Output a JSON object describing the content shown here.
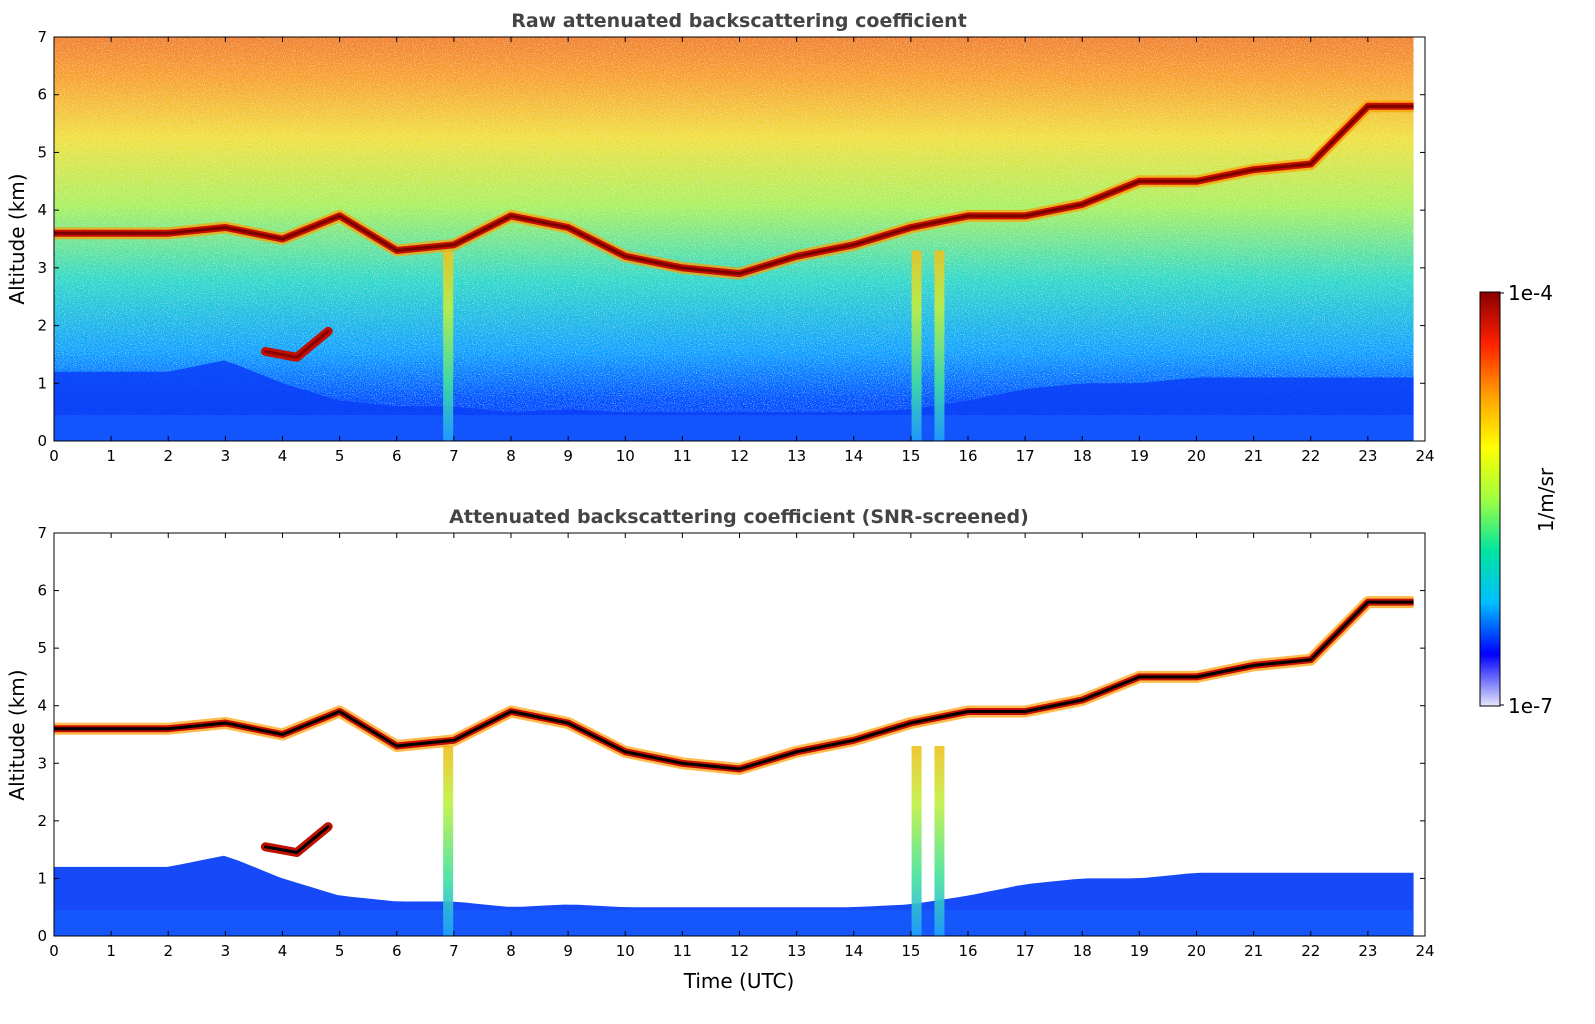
{
  "colors": {
    "panel_border": "#000000",
    "title_text": "#444444",
    "low": "#0000ff",
    "high": "#8b0000"
  },
  "colorbar": {
    "label": "1/m/sr",
    "max_label": "1e-4",
    "min_label": "1e-7",
    "colormap": [
      "#e6e6fa",
      "#0000ff",
      "#00bfff",
      "#00e5a0",
      "#a0ff40",
      "#ffff00",
      "#ffa000",
      "#ff2000",
      "#8b0000"
    ]
  },
  "chart_data": [
    {
      "type": "heatmap",
      "title": "Raw attenuated backscattering coefficient",
      "xlabel": "",
      "ylabel": "Altitude (km)",
      "xlim": [
        0,
        24
      ],
      "ylim": [
        0,
        7
      ],
      "xticks": [
        "0",
        "1",
        "2",
        "3",
        "4",
        "5",
        "6",
        "7",
        "8",
        "9",
        "10",
        "11",
        "12",
        "13",
        "14",
        "15",
        "16",
        "17",
        "18",
        "19",
        "20",
        "21",
        "22",
        "23",
        "24"
      ],
      "yticks": [
        "0",
        "1",
        "2",
        "3",
        "4",
        "5",
        "6",
        "7"
      ],
      "data_end_time": 23.8,
      "cloud_layer": {
        "time": [
          0,
          1,
          2,
          3,
          4,
          5,
          6,
          7,
          8,
          9,
          10,
          11,
          12,
          13,
          14,
          15,
          16,
          17,
          18,
          19,
          20,
          21,
          22,
          23,
          23.8
        ],
        "altitude_km": [
          3.6,
          3.6,
          3.6,
          3.7,
          3.5,
          3.9,
          3.3,
          3.4,
          3.9,
          3.7,
          3.2,
          3.0,
          2.9,
          3.2,
          3.4,
          3.7,
          3.9,
          3.9,
          4.1,
          4.5,
          4.5,
          4.7,
          4.8,
          5.8,
          5.8
        ]
      },
      "boundary_layer": {
        "time": [
          0,
          2,
          3,
          4,
          5,
          6,
          7,
          8,
          9,
          10,
          11,
          12,
          13,
          14,
          15,
          16,
          17,
          18,
          19,
          20,
          21,
          22,
          23,
          23.8
        ],
        "top_altitude_km": [
          1.2,
          1.2,
          1.4,
          1.0,
          0.7,
          0.6,
          0.6,
          0.5,
          0.55,
          0.5,
          0.5,
          0.5,
          0.5,
          0.5,
          0.55,
          0.7,
          0.9,
          1.0,
          1.0,
          1.1,
          1.1,
          1.1,
          1.1,
          1.1
        ]
      },
      "aerosol_layer": {
        "start": 3.7,
        "end": 4.8,
        "altitude_km": [
          1.55,
          1.45,
          1.9
        ]
      },
      "precipitation_columns": [
        6.9,
        15.1,
        15.5
      ],
      "value_range": [
        "1e-7",
        "1e-4"
      ]
    },
    {
      "type": "heatmap",
      "title": "Attenuated backscattering coefficient (SNR-screened)",
      "xlabel": "Time (UTC)",
      "ylabel": "Altitude (km)",
      "xlim": [
        0,
        24
      ],
      "ylim": [
        0,
        7
      ],
      "xticks": [
        "0",
        "1",
        "2",
        "3",
        "4",
        "5",
        "6",
        "7",
        "8",
        "9",
        "10",
        "11",
        "12",
        "13",
        "14",
        "15",
        "16",
        "17",
        "18",
        "19",
        "20",
        "21",
        "22",
        "23",
        "24"
      ],
      "yticks": [
        "0",
        "1",
        "2",
        "3",
        "4",
        "5",
        "6",
        "7"
      ],
      "data_end_time": 23.8,
      "noise_screened": true,
      "cloud_layer": {
        "time": [
          0,
          1,
          2,
          3,
          4,
          5,
          6,
          7,
          8,
          9,
          10,
          11,
          12,
          13,
          14,
          15,
          16,
          17,
          18,
          19,
          20,
          21,
          22,
          23,
          23.8
        ],
        "altitude_km": [
          3.6,
          3.6,
          3.6,
          3.7,
          3.5,
          3.9,
          3.3,
          3.4,
          3.9,
          3.7,
          3.2,
          3.0,
          2.9,
          3.2,
          3.4,
          3.7,
          3.9,
          3.9,
          4.1,
          4.5,
          4.5,
          4.7,
          4.8,
          5.8,
          5.8
        ]
      },
      "boundary_layer": {
        "time": [
          0,
          2,
          3,
          4,
          5,
          6,
          7,
          8,
          9,
          10,
          11,
          12,
          13,
          14,
          15,
          16,
          17,
          18,
          19,
          20,
          21,
          22,
          23,
          23.8
        ],
        "top_altitude_km": [
          1.2,
          1.2,
          1.4,
          1.0,
          0.7,
          0.6,
          0.6,
          0.5,
          0.55,
          0.5,
          0.5,
          0.5,
          0.5,
          0.5,
          0.55,
          0.7,
          0.9,
          1.0,
          1.0,
          1.1,
          1.1,
          1.1,
          1.1,
          1.1
        ]
      },
      "aerosol_layer": {
        "start": 3.7,
        "end": 4.8,
        "altitude_km": [
          1.55,
          1.45,
          1.9
        ]
      },
      "precipitation_columns": [
        6.9,
        15.1,
        15.5
      ],
      "value_range": [
        "1e-7",
        "1e-4"
      ]
    }
  ]
}
